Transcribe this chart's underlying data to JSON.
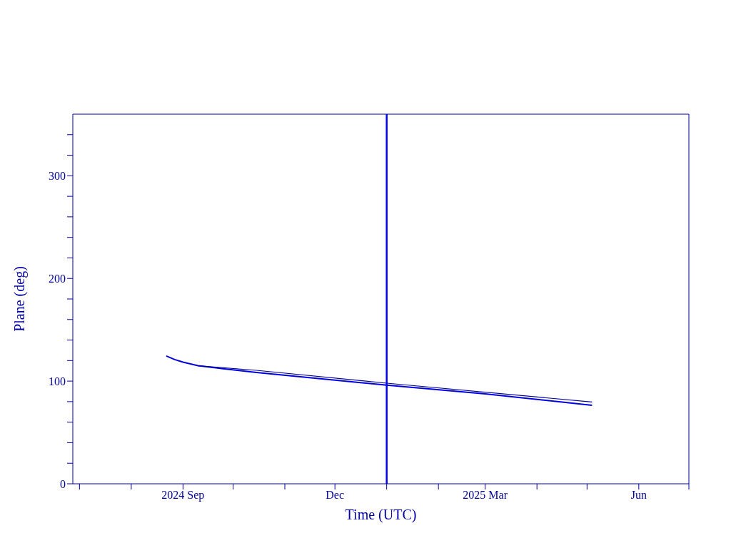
{
  "chart_data": {
    "type": "line",
    "xlabel": "Time (UTC)",
    "ylabel": "Plane (deg)",
    "xlim": [
      "2024-06-27",
      "2025-07-01"
    ],
    "xticks": [
      {
        "value": "2024-07-01",
        "label": null
      },
      {
        "value": "2024-08-01",
        "label": null
      },
      {
        "value": "2024-09-01",
        "label": "2024 Sep"
      },
      {
        "value": "2024-10-01",
        "label": null
      },
      {
        "value": "2024-11-01",
        "label": null
      },
      {
        "value": "2024-12-01",
        "label": "Dec"
      },
      {
        "value": "2025-01-01",
        "label": null
      },
      {
        "value": "2025-02-01",
        "label": null
      },
      {
        "value": "2025-03-01",
        "label": "2025 Mar"
      },
      {
        "value": "2025-04-01",
        "label": null
      },
      {
        "value": "2025-05-01",
        "label": null
      },
      {
        "value": "2025-06-01",
        "label": "Jun"
      },
      {
        "value": "2025-07-01",
        "label": null
      }
    ],
    "ylim": [
      0,
      360
    ],
    "yticks": [
      0,
      {
        "value": 20,
        "label": null
      },
      {
        "value": 40,
        "label": null
      },
      {
        "value": 60,
        "label": null
      },
      {
        "value": 80,
        "label": null
      },
      100,
      {
        "value": 120,
        "label": null
      },
      {
        "value": 140,
        "label": null
      },
      {
        "value": 160,
        "label": null
      },
      {
        "value": 180,
        "label": null
      },
      200,
      {
        "value": 220,
        "label": null
      },
      {
        "value": 240,
        "label": null
      },
      {
        "value": 260,
        "label": null
      },
      {
        "value": 280,
        "label": null
      },
      300,
      {
        "value": 320,
        "label": null
      },
      {
        "value": 340,
        "label": null
      }
    ],
    "marker": "none",
    "line_style": "solid",
    "series": [
      {
        "color": "#0000dd",
        "x": [
          "2024-08-22",
          "2024-08-27",
          "2024-09-01",
          "2024-09-10",
          "2024-09-25",
          "2024-10-15",
          "2024-12-01",
          "2025-01-01",
          "2025-03-01",
          "2025-05-04"
        ],
        "values": [
          124.5,
          121,
          118.5,
          115,
          112,
          108.5,
          101,
          96,
          87.5,
          76.5
        ]
      },
      {
        "color": "#000099",
        "x": [
          "2024-09-10",
          "2024-10-15",
          "2025-01-01",
          "2025-05-04"
        ],
        "values": [
          115,
          110.5,
          98,
          79.6
        ]
      }
    ],
    "ref_lines": [
      {
        "axis": "x",
        "value": "2025-01-01",
        "color": "#0000ff"
      }
    ]
  }
}
